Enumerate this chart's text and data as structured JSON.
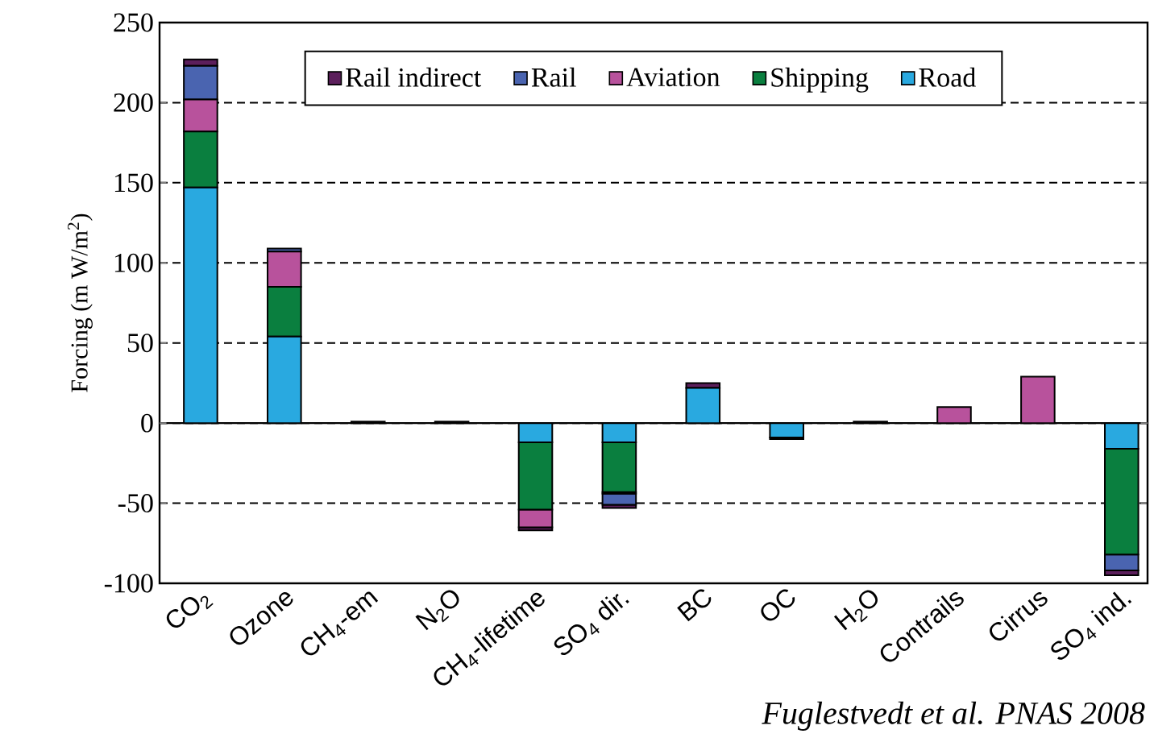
{
  "chart_data": {
    "type": "bar",
    "stacked": true,
    "ylabel": "Forcing (m W/m$^{2}$)",
    "categories": [
      "CO$_{2}$",
      "Ozone",
      "CH$_{4}$-em",
      "N$_{2}$O",
      "CH$_{4}$-lifetime",
      "SO$_{4}$ dir.",
      "BC",
      "OC",
      "H$_{2}$O",
      "Contrails",
      "Cirrus",
      "SO$_{4}$ ind."
    ],
    "series": [
      {
        "name": "Road",
        "color": "#29a9e0",
        "values": [
          147,
          54,
          0,
          0,
          -12,
          -12,
          22,
          -9,
          0,
          0,
          0,
          -16
        ]
      },
      {
        "name": "Shipping",
        "color": "#0a7f3f",
        "values": [
          35,
          31,
          0,
          0,
          -42,
          -31,
          0,
          -1,
          0,
          0,
          0,
          -66
        ]
      },
      {
        "name": "Aviation",
        "color": "#b8529c",
        "values": [
          20,
          22,
          0,
          0,
          -11,
          -1,
          0,
          0,
          0,
          10,
          29,
          0
        ]
      },
      {
        "name": "Rail",
        "color": "#4a64b0",
        "values": [
          21,
          2,
          0,
          0,
          0,
          -7,
          0,
          0,
          0,
          0,
          0,
          -10
        ]
      },
      {
        "name": "Rail indirect",
        "color": "#5c1f5c",
        "values": [
          4,
          0,
          1,
          1,
          -2,
          -2,
          3,
          0,
          1,
          0,
          0,
          -3
        ]
      }
    ],
    "ylim": [
      -100,
      250
    ],
    "yticks": [
      -100,
      -50,
      0,
      50,
      100,
      150,
      200,
      250
    ],
    "grid": "y",
    "legend": "top",
    "annotations": [
      "Fuglestvedt et al. PNAS 2008"
    ]
  }
}
